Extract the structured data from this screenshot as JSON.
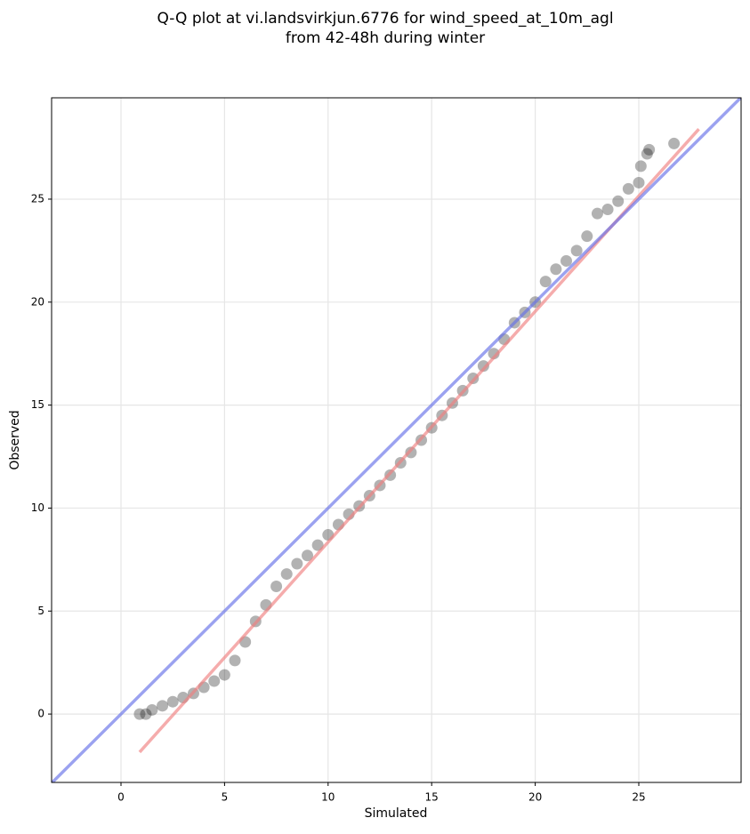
{
  "chart_data": {
    "type": "scatter",
    "title": [
      "Q-Q plot at vi.landsvirkjun.6776 for wind_speed_at_10m_agl",
      "from 42-48h during winter"
    ],
    "x_label": "Simulated",
    "y_label": "Observed",
    "xlim": [
      -3.35,
      29.94
    ],
    "ylim": [
      -3.32,
      29.92
    ],
    "xticks": [
      0,
      5,
      10,
      15,
      20,
      25
    ],
    "yticks": [
      0,
      5,
      10,
      15,
      20,
      25
    ],
    "grid": true,
    "series": [
      {
        "color": "#000000",
        "x": [
          0.9,
          1.2,
          1.5,
          2,
          2.5,
          3,
          3.5,
          4,
          4.5,
          5,
          5.5,
          6,
          6.5,
          7,
          7.5,
          8,
          8.5,
          9,
          9.5,
          10,
          10.5,
          11,
          11.5,
          12,
          12.5,
          13,
          13.5,
          14,
          14.5,
          15,
          15.5,
          16,
          16.5,
          17,
          17.5,
          18,
          18.5,
          19,
          19.5,
          20,
          20.5,
          21,
          21.5,
          22,
          22.5,
          23,
          23.5,
          24,
          24.5,
          25,
          25.1,
          25.4,
          25.5,
          26.7
        ],
        "values": [
          0.0,
          0.0,
          0.2,
          0.4,
          0.6,
          0.8,
          1.0,
          1.3,
          1.6,
          1.9,
          2.6,
          3.5,
          4.5,
          5.3,
          6.2,
          6.8,
          7.3,
          7.7,
          8.2,
          8.7,
          9.2,
          9.7,
          10.1,
          10.6,
          11.1,
          11.6,
          12.2,
          12.7,
          13.3,
          13.9,
          14.5,
          15.1,
          15.7,
          16.3,
          16.9,
          17.5,
          18.2,
          19.0,
          19.5,
          20.0,
          21.0,
          21.6,
          22.0,
          22.5,
          23.2,
          24.3,
          24.5,
          24.9,
          25.5,
          25.8,
          26.6,
          27.2,
          27.4,
          27.7
        ]
      }
    ],
    "lines": [
      {
        "color": "#f08080",
        "x": [
          0.9,
          27.9
        ],
        "values": [
          -1.85,
          28.4
        ]
      },
      {
        "color": "#6670e8",
        "x": [
          -3.35,
          29.94
        ],
        "values": [
          -3.35,
          29.94
        ]
      }
    ]
  }
}
